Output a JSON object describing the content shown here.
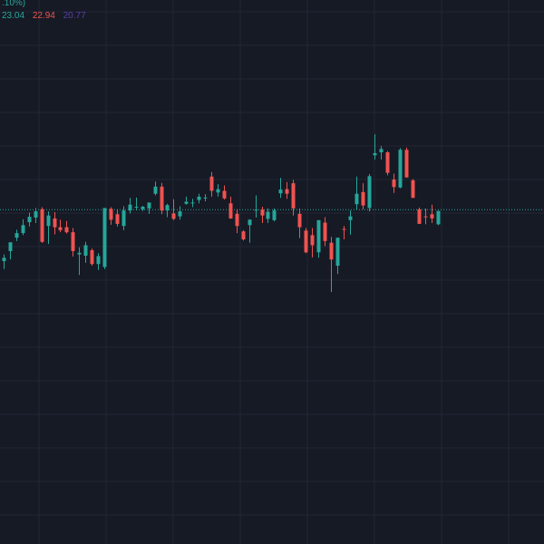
{
  "header": {
    "change_fragment": ".10%)",
    "ma_values": [
      "23.04",
      "22.94",
      "20.77"
    ]
  },
  "colors": {
    "background": "#161a25",
    "grid": "#232733",
    "up": "#26a69a",
    "down": "#ef5350",
    "ma_1": "#26a69a",
    "ma_2": "#ef5350",
    "ma_3": "#5b3ea8",
    "price_line": "#26a69a"
  },
  "chart_data": {
    "type": "candlestick",
    "title": "",
    "xlabel": "",
    "ylabel": "",
    "grid": true,
    "price_scale": "hidden",
    "y_unit": "relative price (0 = current price line, +1 = upper band)",
    "ylim": [
      -8,
      5
    ],
    "current_price": 0,
    "candles": [
      {
        "o": -1.24,
        "h": -1.08,
        "l": -1.43,
        "c": -1.16
      },
      {
        "o": -1.0,
        "h": -0.89,
        "l": -1.2,
        "c": -0.79
      },
      {
        "o": -0.68,
        "h": -0.49,
        "l": -0.76,
        "c": -0.57
      },
      {
        "o": -0.57,
        "h": -0.24,
        "l": -0.62,
        "c": -0.38
      },
      {
        "o": -0.31,
        "h": -0.08,
        "l": -0.41,
        "c": -0.18
      },
      {
        "o": -0.2,
        "h": 0.03,
        "l": -0.33,
        "c": -0.05
      },
      {
        "o": 0.0,
        "h": 0.05,
        "l": -0.8,
        "c": -0.78
      },
      {
        "o": -0.4,
        "h": -0.05,
        "l": -0.83,
        "c": -0.15
      },
      {
        "o": -0.22,
        "h": -0.07,
        "l": -0.6,
        "c": -0.43
      },
      {
        "o": -0.43,
        "h": -0.25,
        "l": -0.55,
        "c": -0.5
      },
      {
        "o": -0.43,
        "h": -0.28,
        "l": -0.58,
        "c": -0.55
      },
      {
        "o": -0.55,
        "h": -0.45,
        "l": -1.13,
        "c": -1.0
      },
      {
        "o": -1.08,
        "h": -0.91,
        "l": -1.57,
        "c": -1.04
      },
      {
        "o": -1.11,
        "h": -0.78,
        "l": -1.28,
        "c": -0.86
      },
      {
        "o": -0.98,
        "h": -0.94,
        "l": -1.35,
        "c": -1.31
      },
      {
        "o": -1.31,
        "h": -1.05,
        "l": -1.45,
        "c": -1.12
      },
      {
        "o": -1.38,
        "h": 0.02,
        "l": -1.43,
        "c": 0.03
      },
      {
        "o": 0.01,
        "h": 0.05,
        "l": -0.37,
        "c": -0.25
      },
      {
        "o": -0.12,
        "h": -0.0,
        "l": -0.41,
        "c": -0.35
      },
      {
        "o": -0.4,
        "h": 0.07,
        "l": -0.5,
        "c": -0.03
      },
      {
        "o": -0.03,
        "h": 0.27,
        "l": -0.1,
        "c": 0.11
      },
      {
        "o": 0.06,
        "h": 0.28,
        "l": -0.03,
        "c": 0.06
      },
      {
        "o": 0.0,
        "h": 0.08,
        "l": -0.04,
        "c": 0.06
      },
      {
        "o": 0.02,
        "h": 0.13,
        "l": -0.11,
        "c": 0.16
      },
      {
        "o": 0.37,
        "h": 0.66,
        "l": 0.33,
        "c": 0.54
      },
      {
        "o": 0.54,
        "h": 0.63,
        "l": -0.12,
        "c": -0.03
      },
      {
        "o": -0.03,
        "h": 0.13,
        "l": -0.19,
        "c": 0.1
      },
      {
        "o": -0.1,
        "h": 0.24,
        "l": -0.26,
        "c": -0.23
      },
      {
        "o": -0.17,
        "h": 0.07,
        "l": -0.25,
        "c": -0.05
      },
      {
        "o": 0.13,
        "h": 0.3,
        "l": 0.11,
        "c": 0.18
      },
      {
        "o": 0.16,
        "h": 0.25,
        "l": 0.05,
        "c": 0.16
      },
      {
        "o": 0.22,
        "h": 0.37,
        "l": 0.14,
        "c": 0.3
      },
      {
        "o": 0.28,
        "h": 0.36,
        "l": 0.19,
        "c": 0.28
      },
      {
        "o": 0.78,
        "h": 0.89,
        "l": 0.3,
        "c": 0.44
      },
      {
        "o": 0.4,
        "h": 0.6,
        "l": 0.3,
        "c": 0.48
      },
      {
        "o": 0.44,
        "h": 0.57,
        "l": 0.23,
        "c": 0.26
      },
      {
        "o": 0.14,
        "h": 0.3,
        "l": -0.23,
        "c": -0.22
      },
      {
        "o": -0.11,
        "h": 0.0,
        "l": -0.57,
        "c": -0.4
      },
      {
        "o": -0.53,
        "h": -0.5,
        "l": -0.75,
        "c": -0.72
      },
      {
        "o": -0.38,
        "h": -0.24,
        "l": -0.8,
        "c": -0.25
      },
      {
        "o": -0.02,
        "h": 0.33,
        "l": -0.2,
        "c": -0.01
      },
      {
        "o": -0.01,
        "h": 0.06,
        "l": -0.33,
        "c": -0.15
      },
      {
        "o": -0.23,
        "h": 0.02,
        "l": -0.33,
        "c": -0.06
      },
      {
        "o": -0.26,
        "h": 0.02,
        "l": -0.29,
        "c": -0.03
      },
      {
        "o": 0.38,
        "h": 0.75,
        "l": 0.27,
        "c": 0.47
      },
      {
        "o": 0.48,
        "h": 0.65,
        "l": 0.25,
        "c": 0.37
      },
      {
        "o": 0.62,
        "h": 0.7,
        "l": -0.15,
        "c": 0.02
      },
      {
        "o": -0.11,
        "h": 0.02,
        "l": -0.69,
        "c": -0.43
      },
      {
        "o": -0.51,
        "h": -0.45,
        "l": -1.05,
        "c": -1.03
      },
      {
        "o": -0.62,
        "h": -0.45,
        "l": -1.15,
        "c": -0.86
      },
      {
        "o": -1.03,
        "h": -0.31,
        "l": -1.16,
        "c": -0.26
      },
      {
        "o": -0.32,
        "h": -0.19,
        "l": -0.88,
        "c": -0.76
      },
      {
        "o": -0.8,
        "h": -0.66,
        "l": -1.98,
        "c": -1.2
      },
      {
        "o": -1.35,
        "h": -0.74,
        "l": -1.55,
        "c": -0.68
      },
      {
        "o": -0.47,
        "h": -0.4,
        "l": -0.72,
        "c": -0.49
      },
      {
        "o": -0.26,
        "h": -0.03,
        "l": -0.61,
        "c": -0.17
      },
      {
        "o": 0.12,
        "h": 0.78,
        "l": -0.01,
        "c": 0.37
      },
      {
        "o": 0.41,
        "h": 0.62,
        "l": 0.0,
        "c": 0.09
      },
      {
        "o": 0.03,
        "h": 0.84,
        "l": -0.05,
        "c": 0.79
      },
      {
        "o": 1.29,
        "h": 1.79,
        "l": 1.19,
        "c": 1.34
      },
      {
        "o": 1.36,
        "h": 1.51,
        "l": 1.19,
        "c": 1.44
      },
      {
        "o": 1.36,
        "h": 1.39,
        "l": 0.81,
        "c": 0.87
      },
      {
        "o": 0.71,
        "h": 0.85,
        "l": 0.39,
        "c": 0.53
      },
      {
        "o": 0.52,
        "h": 1.46,
        "l": 0.5,
        "c": 1.42
      },
      {
        "o": 1.42,
        "h": 1.47,
        "l": 0.76,
        "c": 0.76
      },
      {
        "o": 0.69,
        "h": 0.72,
        "l": 0.28,
        "c": 0.27
      },
      {
        "o": 0.0,
        "h": 0.04,
        "l": -0.35,
        "c": -0.35
      },
      {
        "o": -0.17,
        "h": 0.02,
        "l": -0.36,
        "c": -0.19
      },
      {
        "o": -0.12,
        "h": 0.11,
        "l": -0.33,
        "c": -0.22
      },
      {
        "o": -0.36,
        "h": -0.04,
        "l": -0.38,
        "c": -0.04
      }
    ]
  }
}
